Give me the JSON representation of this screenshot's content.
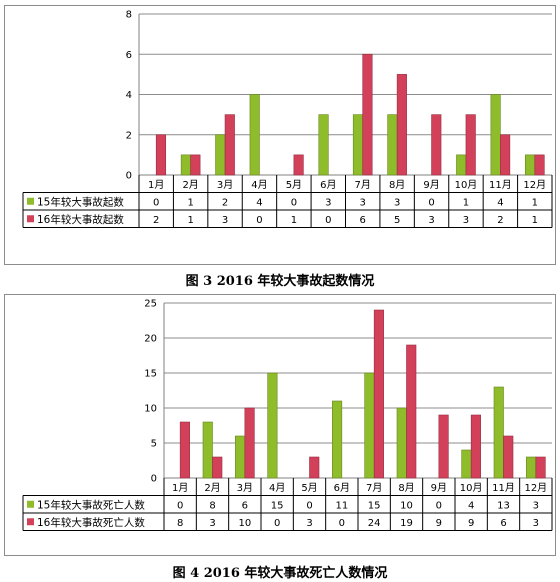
{
  "chart_data": [
    {
      "type": "bar",
      "categories": [
        "1月",
        "2月",
        "3月",
        "4月",
        "5月",
        "6月",
        "7月",
        "8月",
        "9月",
        "10月",
        "11月",
        "12月"
      ],
      "series": [
        {
          "name": "15年较大事故起数",
          "color": "#8fbc2a",
          "values": [
            0,
            1,
            2,
            4,
            0,
            3,
            3,
            3,
            0,
            1,
            4,
            1
          ]
        },
        {
          "name": "16年较大事故起数",
          "color": "#d2405a",
          "values": [
            2,
            1,
            3,
            0,
            1,
            0,
            6,
            5,
            3,
            3,
            2,
            1
          ]
        }
      ],
      "ylim": [
        0,
        8
      ],
      "yticks": [
        0,
        2,
        4,
        6,
        8
      ],
      "grid": true,
      "legend": "data-table"
    },
    {
      "type": "bar",
      "categories": [
        "1月",
        "2月",
        "3月",
        "4月",
        "5月",
        "6月",
        "7月",
        "8月",
        "9月",
        "10月",
        "11月",
        "12月"
      ],
      "series": [
        {
          "name": "15年较大事故死亡人数",
          "color": "#8fbc2a",
          "values": [
            0,
            8,
            6,
            15,
            0,
            11,
            15,
            10,
            0,
            4,
            13,
            3
          ]
        },
        {
          "name": "16年较大事故死亡人数",
          "color": "#d2405a",
          "values": [
            8,
            3,
            10,
            0,
            3,
            0,
            24,
            19,
            9,
            9,
            6,
            3
          ]
        }
      ],
      "ylim": [
        0,
        25
      ],
      "yticks": [
        0,
        5,
        10,
        15,
        20,
        25
      ],
      "grid": true,
      "legend": "data-table"
    }
  ],
  "captions": {
    "figure3": "图 3   2016 年较大事故起数情况",
    "figure4": "图 4   2016 年较大事故死亡人数情况"
  }
}
